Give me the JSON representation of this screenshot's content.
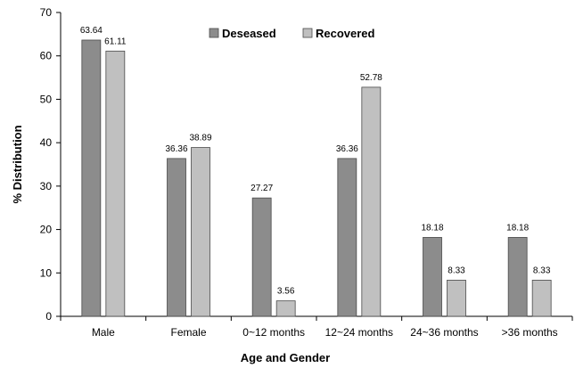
{
  "chart_data": {
    "type": "bar",
    "title": "",
    "xlabel": "Age and Gender",
    "ylabel": "% Distribution",
    "ylim": [
      0,
      70
    ],
    "yticks": [
      0,
      10,
      20,
      30,
      40,
      50,
      60,
      70
    ],
    "grid": false,
    "legend_position": "top-center",
    "categories": [
      "Male",
      "Female",
      "0~12 months",
      "12~24 months",
      "24~36 months",
      ">36 months"
    ],
    "series": [
      {
        "name": "Deseased",
        "color": "#8c8c8c",
        "values": [
          63.64,
          36.36,
          27.27,
          36.36,
          18.18,
          18.18
        ],
        "labels": [
          "63.64",
          "36.36",
          "27.27",
          "36.36",
          "18.18",
          "18.18"
        ]
      },
      {
        "name": "Recovered",
        "color": "#c0c0c0",
        "values": [
          61.11,
          38.89,
          3.56,
          52.78,
          8.33,
          8.33
        ],
        "labels": [
          "61.11",
          "38.89",
          "3.56",
          "52.78",
          "8.33",
          "8.33"
        ]
      }
    ]
  }
}
